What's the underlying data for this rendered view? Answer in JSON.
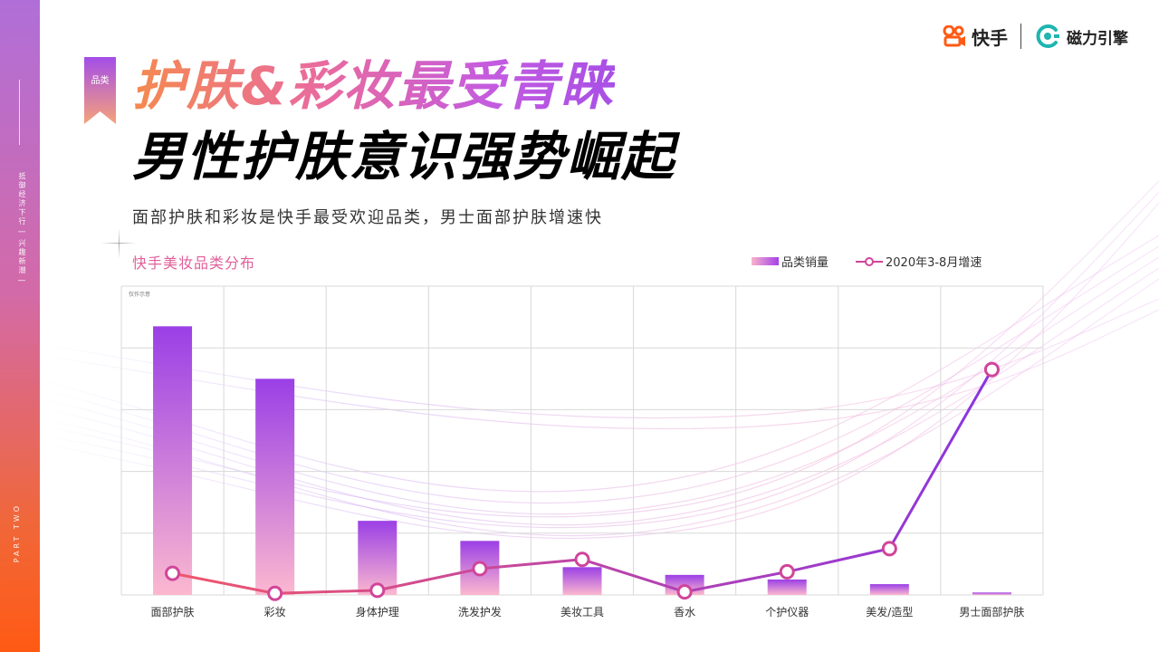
{
  "side": {
    "vertical_text": "抵御经济下行 | 兴趣新潮 |",
    "part_text": "PART TWO"
  },
  "logos": {
    "kuaishou": "快手",
    "cili": "磁力引擎"
  },
  "tag": "品类",
  "title_line1": "护肤&彩妆最受青睐",
  "title_line2": "男性护肤意识强势崛起",
  "subtitle": "面部护肤和彩妆是快手最受欢迎品类，男士面部护肤增速快",
  "chart_title": "快手美妆品类分布",
  "chart_note": "仅作示意",
  "colors": {
    "bar_top": "#9b3fe6",
    "bar_bottom": "#fbb8cf",
    "line_start": "#f0566c",
    "line_end": "#8a34e0",
    "marker_stroke": "#d0459a",
    "grid": "#d8d8d8",
    "accent_pink": "#e0609a"
  },
  "chart_data": {
    "type": "bar",
    "title": "快手美妆品类分布",
    "categories": [
      "面部护肤",
      "彩妆",
      "身体护理",
      "洗发护发",
      "美妆工具",
      "香水",
      "个护仪器",
      "美发/造型",
      "男士面部护肤"
    ],
    "ylim": [
      0,
      100
    ],
    "grid": true,
    "legend_position": "top-right",
    "series": [
      {
        "name": "品类销量",
        "type": "bar",
        "values": [
          87,
          70,
          24,
          17.5,
          9,
          6.5,
          5,
          3.5,
          0.8
        ]
      },
      {
        "name": "2020年3-8月增速",
        "type": "line",
        "values": [
          7,
          0.5,
          1.5,
          8.5,
          11.5,
          1,
          7.5,
          15,
          73
        ]
      }
    ]
  }
}
